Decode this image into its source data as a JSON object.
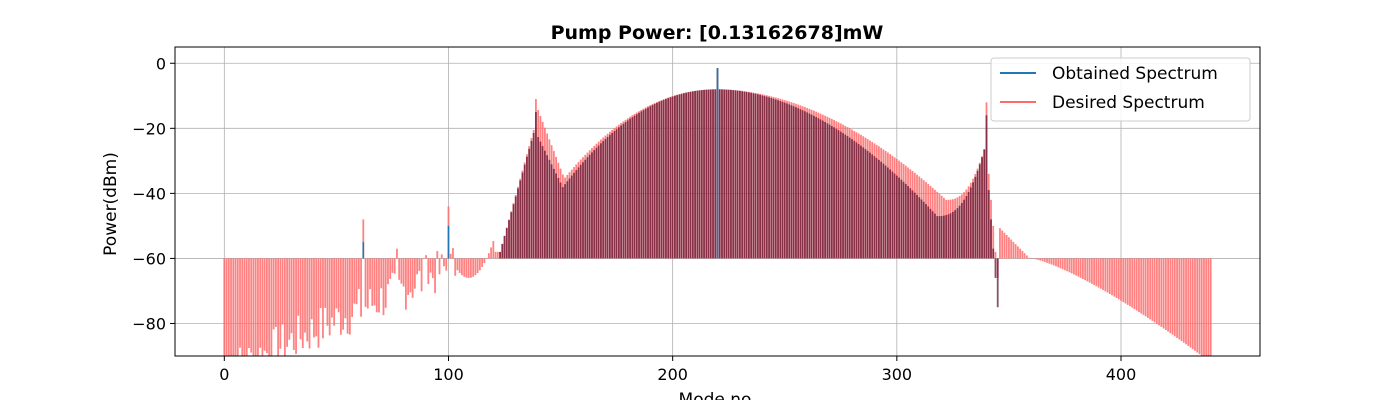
{
  "chart_data": {
    "type": "bar",
    "title": "Pump Power: [0.13162678]mW",
    "xlabel": "Mode no",
    "ylabel": "Power(dBm)",
    "xlim": [
      -22,
      462
    ],
    "ylim": [
      -90,
      5
    ],
    "xticks": [
      0,
      100,
      200,
      300,
      400
    ],
    "yticks": [
      0,
      -20,
      -40,
      -60,
      -80
    ],
    "ytick_labels": [
      "0",
      "−20",
      "−40",
      "−60",
      "−80"
    ],
    "grid": true,
    "legend_position": "top-right",
    "baseline": -60,
    "modes": [
      0,
      440
    ],
    "series": [
      {
        "name": "Obtained Spectrum",
        "color": "#1f77b4",
        "range": [
          123,
          345
        ],
        "envelope": {
          "center": 220,
          "peak": -8,
          "left_min_at": 150,
          "left_min": -39,
          "right_min_at": 318,
          "right_min": -47
        },
        "spikes": [
          {
            "x": 62,
            "y": -55
          },
          {
            "x": 100,
            "y": -50
          },
          {
            "x": 139,
            "y": -15
          },
          {
            "x": 220,
            "y": -1.5
          },
          {
            "x": 340,
            "y": -16
          }
        ]
      },
      {
        "name": "Desired Spectrum",
        "color": "#ff6b6b",
        "range": [
          0,
          440
        ],
        "envelope": {
          "center": 220,
          "peak": -8,
          "left_min_at": 151,
          "left_min": -36,
          "right_min_at": 322,
          "right_min": -42
        },
        "spikes": [
          {
            "x": 62,
            "y": -48
          },
          {
            "x": 77,
            "y": -57
          },
          {
            "x": 90,
            "y": -59
          },
          {
            "x": 100,
            "y": -44
          },
          {
            "x": 139,
            "y": -11
          },
          {
            "x": 340,
            "y": -12
          }
        ],
        "dips": {
          "x_range": [
            104,
            120
          ],
          "min": -66,
          "at": 109
        }
      }
    ]
  }
}
